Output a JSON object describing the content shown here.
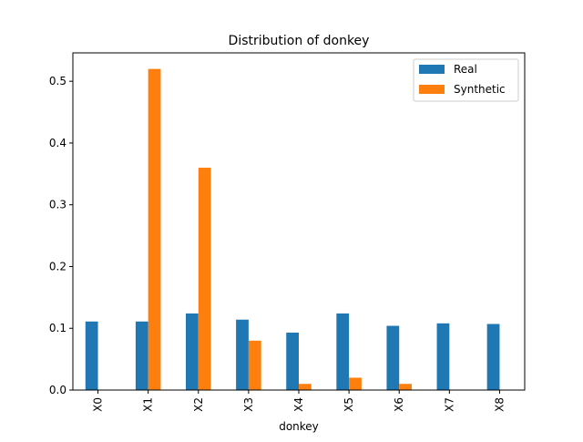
{
  "chart_data": {
    "type": "bar",
    "title": "Distribution of donkey",
    "xlabel": "donkey",
    "ylabel": "",
    "categories": [
      "X0",
      "X1",
      "X2",
      "X3",
      "X4",
      "X5",
      "X6",
      "X7",
      "X8"
    ],
    "series": [
      {
        "name": "Real",
        "color": "#1f77b4",
        "values": [
          0.111,
          0.111,
          0.124,
          0.114,
          0.093,
          0.124,
          0.104,
          0.108,
          0.107
        ]
      },
      {
        "name": "Synthetic",
        "color": "#ff7f0e",
        "values": [
          0,
          0.52,
          0.36,
          0.08,
          0.01,
          0.02,
          0.01,
          0,
          0
        ]
      }
    ],
    "yticks": [
      "0.0",
      "0.1",
      "0.2",
      "0.3",
      "0.4",
      "0.5"
    ],
    "ylim": [
      0,
      0.546
    ],
    "grid": false,
    "legend_position": "top-right"
  }
}
